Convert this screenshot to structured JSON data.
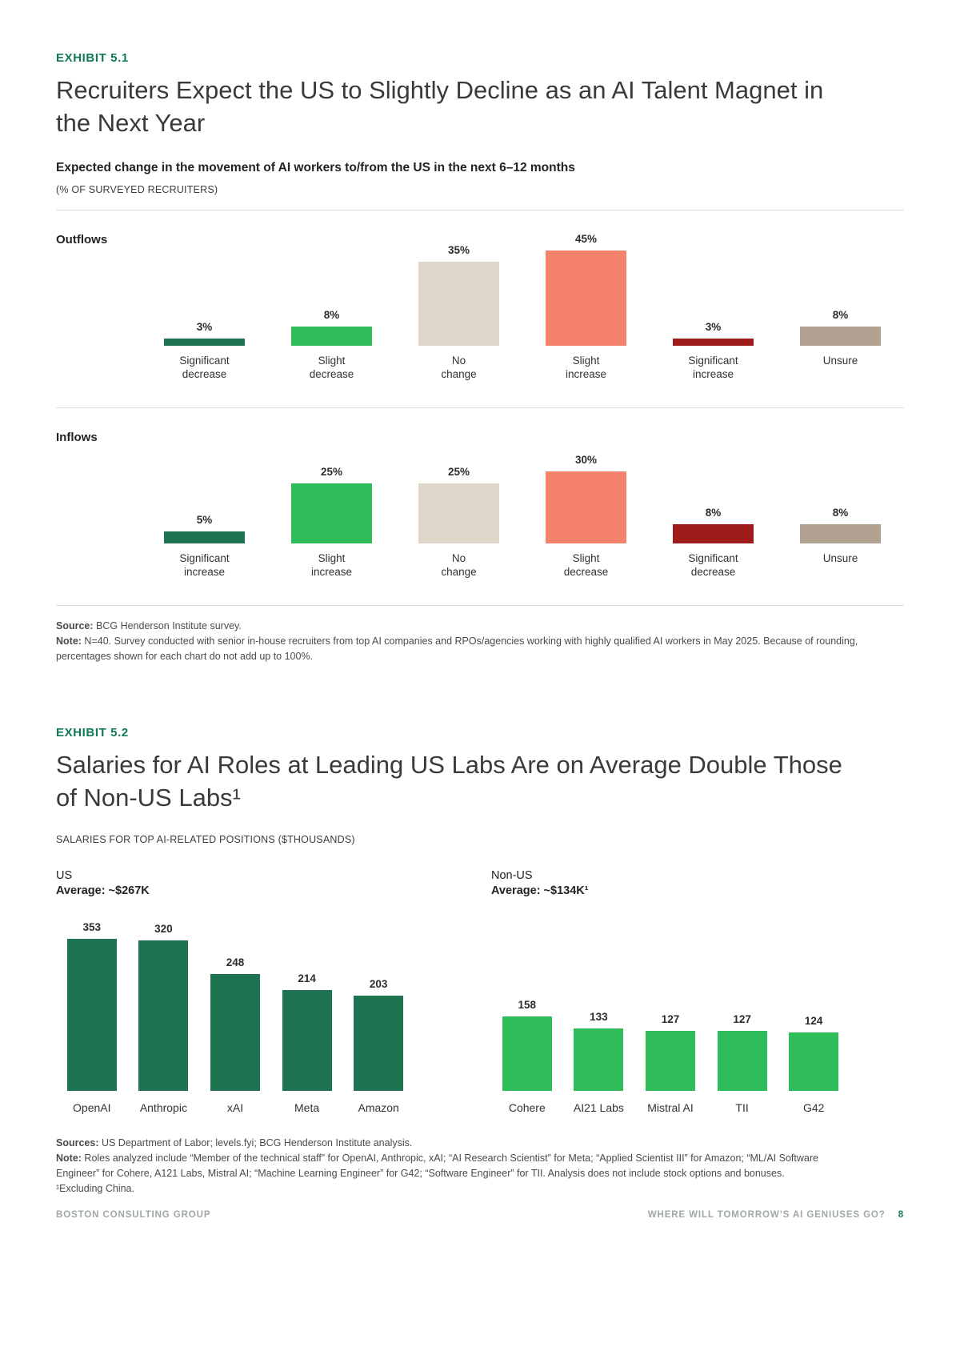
{
  "colors": {
    "accent_green": "#0f7a55",
    "dark_green": "#1e7450",
    "bright_green": "#2fbd5c",
    "beige": "#ded6c8",
    "salmon": "#f4826c",
    "dark_red": "#9e1b1a",
    "taupe": "#b0a191",
    "title_text": "#3b3a38",
    "footer_text": "#a0a8a4"
  },
  "exhibit1": {
    "eyebrow": "EXHIBIT 5.1",
    "title": "Recruiters Expect the US to Slightly Decline as an AI Talent Magnet in the Next Year",
    "subtitle": "Expected change in the movement of AI workers to/from the US in the next 6–12 months",
    "unit_label": "(% OF SURVEYED RECRUITERS)",
    "source_label": "Source:",
    "source_text": " BCG Henderson Institute survey.",
    "note_label": "Note:",
    "note_text": " N=40. Survey conducted with senior in-house recruiters from top AI companies and RPOs/agencies working with highly qualified AI workers in May 2025. Because of rounding, percentages shown for each chart do not add up to 100%."
  },
  "exhibit2": {
    "eyebrow": "EXHIBIT 5.2",
    "title": "Salaries for AI Roles at Leading US Labs Are on Average Double Those of Non-US Labs¹",
    "unit_label": "SALARIES FOR TOP AI-RELATED POSITIONS ($THOUSANDS)",
    "sources_label": "Sources:",
    "sources_text": " US Department of Labor; levels.fyi; BCG Henderson Institute analysis.",
    "note_label": "Note:",
    "note_text": " Roles analyzed include “Member of the technical staff” for OpenAI, Anthropic, xAI; “AI Research Scientist” for Meta; “Applied Scientist III” for Amazon; “ML/AI Software Engineer” for Cohere, A121 Labs, Mistral AI; “Machine Learning Engineer” for G42; “Software Engineer” for TII. Analysis does not include stock options and bonuses.",
    "footnote": "¹Excluding China."
  },
  "chart_data": [
    {
      "id": "outflows",
      "type": "bar",
      "title": "Outflows",
      "categories": [
        "Significant\ndecrease",
        "Slight\ndecrease",
        "No\nchange",
        "Slight\nincrease",
        "Significant\nincrease",
        "Unsure"
      ],
      "values": [
        3,
        8,
        35,
        45,
        3,
        8
      ],
      "value_labels": [
        "3%",
        "8%",
        "35%",
        "45%",
        "3%",
        "8%"
      ],
      "bar_colors": [
        "dark_green",
        "bright_green",
        "beige",
        "salmon",
        "dark_red",
        "taupe"
      ],
      "ylabel": "% of surveyed recruiters",
      "ylim": [
        0,
        47
      ],
      "grid": false,
      "legend": false
    },
    {
      "id": "inflows",
      "type": "bar",
      "title": "Inflows",
      "categories": [
        "Significant\nincrease",
        "Slight\nincrease",
        "No\nchange",
        "Slight\ndecrease",
        "Significant\ndecrease",
        "Unsure"
      ],
      "values": [
        5,
        25,
        25,
        30,
        8,
        8
      ],
      "value_labels": [
        "5%",
        "25%",
        "25%",
        "30%",
        "8%",
        "8%"
      ],
      "bar_colors": [
        "dark_green",
        "bright_green",
        "beige",
        "salmon",
        "dark_red",
        "taupe"
      ],
      "ylabel": "% of surveyed recruiters",
      "ylim": [
        0,
        47
      ],
      "grid": false,
      "legend": false
    },
    {
      "id": "salaries_us",
      "type": "bar",
      "group": "US",
      "average_label": "Average: ~$267K",
      "categories": [
        "OpenAI",
        "Anthropic",
        "xAI",
        "Meta",
        "Amazon"
      ],
      "values": [
        353,
        320,
        248,
        214,
        203
      ],
      "bar_color": "dark_green",
      "ylabel": "Salary ($ thousands)",
      "ylim": [
        0,
        360
      ],
      "grid": false,
      "legend": false
    },
    {
      "id": "salaries_non_us",
      "type": "bar",
      "group": "Non-US",
      "average_label": "Average: ~$134K¹",
      "categories": [
        "Cohere",
        "AI21 Labs",
        "Mistral AI",
        "TII",
        "G42"
      ],
      "values": [
        158,
        133,
        127,
        127,
        124
      ],
      "bar_color": "bright_green",
      "ylabel": "Salary ($ thousands)",
      "ylim": [
        0,
        360
      ],
      "grid": false,
      "legend": false
    }
  ],
  "page": {
    "footer_left": "BOSTON CONSULTING GROUP",
    "footer_right": "WHERE WILL TOMORROW’S AI GENIUSES GO?",
    "page_number": "8"
  }
}
